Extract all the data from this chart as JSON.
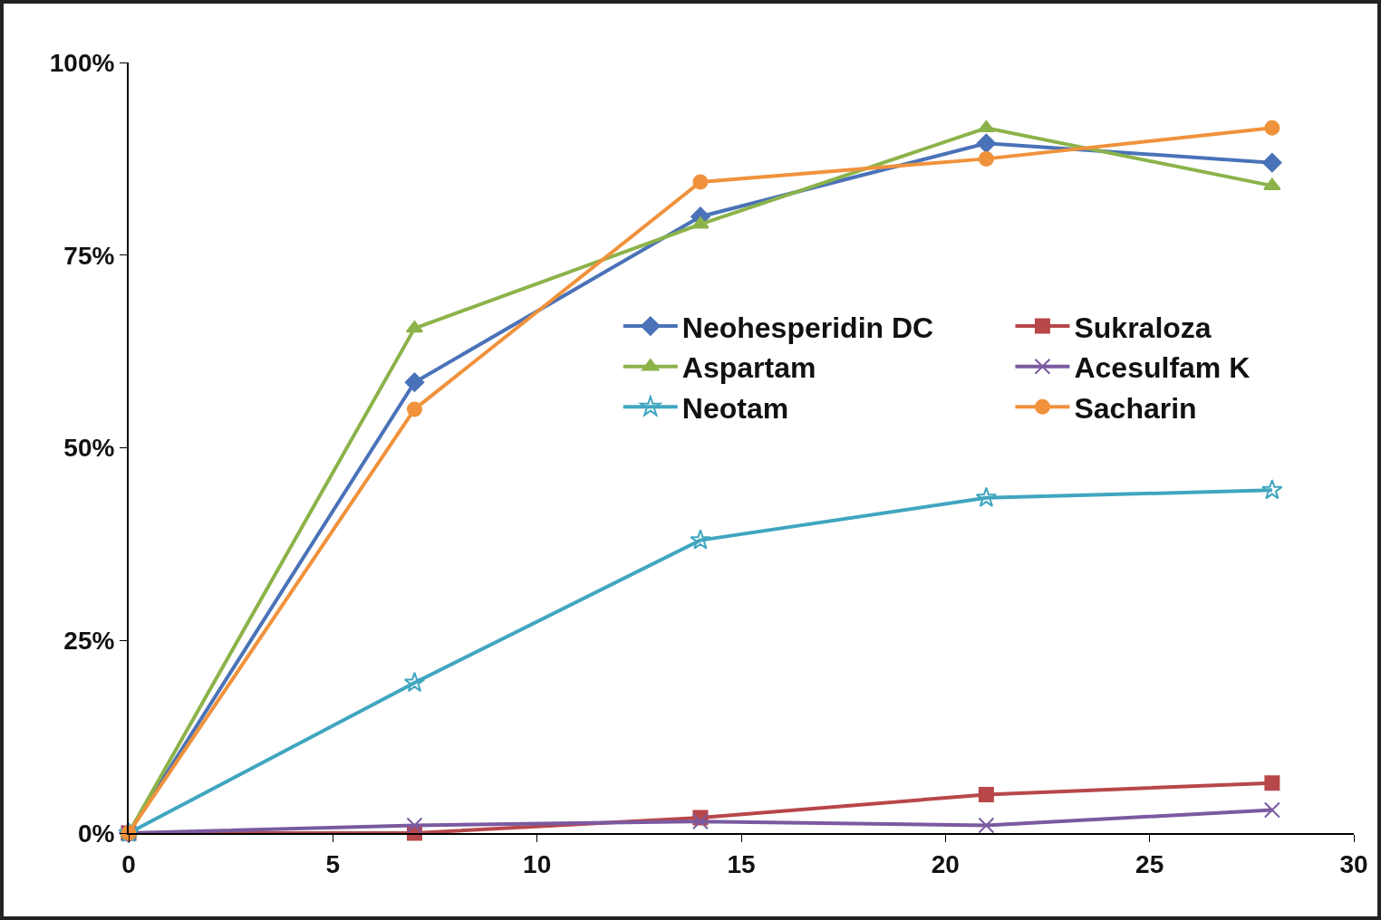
{
  "chart_data": {
    "type": "line",
    "x": [
      0,
      7,
      14,
      21,
      28
    ],
    "xlim": [
      0,
      30
    ],
    "xticks": [
      0,
      5,
      10,
      15,
      20,
      25,
      30
    ],
    "ylim": [
      0,
      100
    ],
    "yticks": [
      {
        "value": 0,
        "label": "0%"
      },
      {
        "value": 25,
        "label": "25%"
      },
      {
        "value": 50,
        "label": "50%"
      },
      {
        "value": 75,
        "label": "75%"
      },
      {
        "value": 100,
        "label": "100%"
      }
    ],
    "grid": false,
    "legend": "right",
    "line_style": "solid",
    "series": [
      {
        "name": "Neohesperidin DC",
        "color": "#4a72b8",
        "marker": "diamond",
        "values": [
          0,
          58.5,
          80,
          89.5,
          87
        ]
      },
      {
        "name": "Sukraloza",
        "color": "#b8474a",
        "marker": "square",
        "values": [
          0,
          0,
          2,
          5,
          6.5
        ]
      },
      {
        "name": "Aspartam",
        "color": "#8cb34a",
        "marker": "triangle",
        "values": [
          0,
          65.5,
          79,
          91.5,
          84
        ]
      },
      {
        "name": "Acesulfam K",
        "color": "#7a5aa0",
        "marker": "cross",
        "values": [
          0,
          1,
          1.5,
          1,
          3
        ]
      },
      {
        "name": "Neotam",
        "color": "#40a6c0",
        "marker": "star",
        "values": [
          0,
          19.5,
          38,
          43.5,
          44.5
        ]
      },
      {
        "name": "Sacharin",
        "color": "#f0923c",
        "marker": "circle",
        "values": [
          0,
          55,
          84.5,
          87.5,
          91.5
        ]
      }
    ]
  }
}
